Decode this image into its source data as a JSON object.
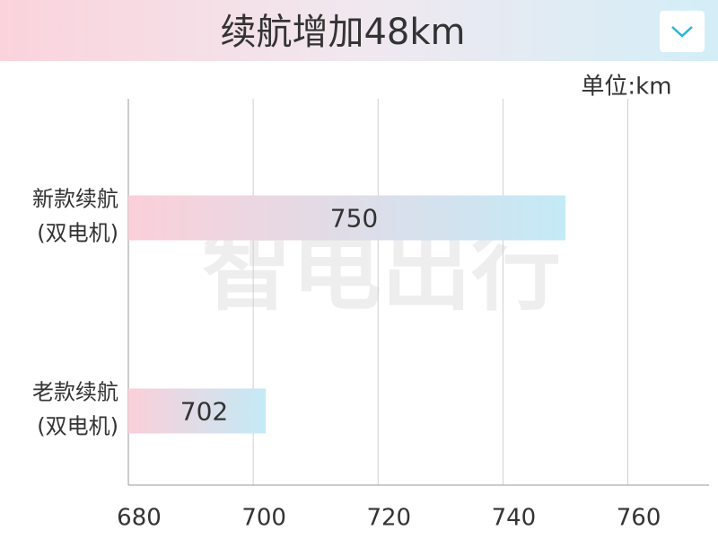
{
  "chart_data": {
    "type": "hbar",
    "title": "续航增加48km",
    "unit_label": "单位:km",
    "watermark": "智电出行",
    "categories": [
      [
        "新款续航",
        "(双电机)"
      ],
      [
        "老款续航",
        "(双电机)"
      ]
    ],
    "values": [
      750,
      702
    ],
    "gradient": [
      "#fbcfd9",
      "#c3eaf6"
    ],
    "xlim": [
      680,
      773
    ],
    "xticks": [
      680,
      700,
      720,
      740,
      760
    ],
    "grid": true
  }
}
